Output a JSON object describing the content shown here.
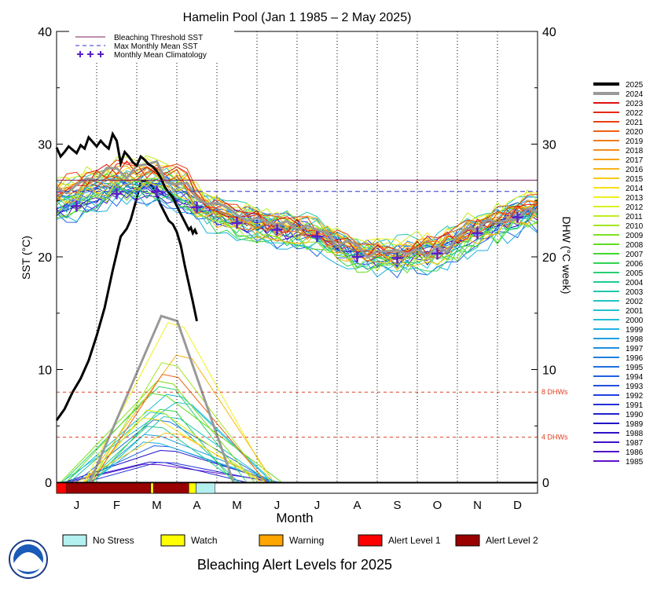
{
  "chart_data": {
    "type": "line",
    "title": "Hamelin Pool      (Jan 1 1985 – 2 May 2025)",
    "xlabel": "Month",
    "ylabel_left": "SST (°C)",
    "ylabel_right": "DHW (°C week)",
    "ylim": [
      0,
      40
    ],
    "y_ticks": [
      0,
      10,
      20,
      30,
      40
    ],
    "months": [
      "J",
      "F",
      "M",
      "A",
      "M",
      "J",
      "J",
      "A",
      "S",
      "O",
      "N",
      "D"
    ],
    "bleaching_threshold_sst": 26.8,
    "max_monthly_mean_sst": 25.8,
    "dhw_lines": [
      {
        "value": 4,
        "label": "4 DHWs"
      },
      {
        "value": 8,
        "label": "8 DHWs"
      }
    ],
    "legend_top": [
      {
        "label": "Bleaching Threshold SST",
        "style": "solid",
        "color": "#7a1f5a"
      },
      {
        "label": "Max Monthly Mean SST",
        "style": "dashed",
        "color": "#3030c8"
      },
      {
        "label": "Monthly Mean Climatology",
        "style": "plus",
        "color": "#5a1fc8"
      }
    ],
    "climatology": [
      24.5,
      25.6,
      25.8,
      24.4,
      23.0,
      22.4,
      21.8,
      20.0,
      19.9,
      20.3,
      22.1,
      23.5
    ],
    "years": [
      "2025",
      "2024",
      "2023",
      "2022",
      "2021",
      "2020",
      "2019",
      "2018",
      "2017",
      "2016",
      "2015",
      "2014",
      "2013",
      "2012",
      "2011",
      "2010",
      "2009",
      "2008",
      "2007",
      "2006",
      "2005",
      "2004",
      "2003",
      "2002",
      "2001",
      "2000",
      "1999",
      "1998",
      "1997",
      "1996",
      "1995",
      "1994",
      "1993",
      "1992",
      "1991",
      "1990",
      "1989",
      "1988",
      "1987",
      "1986",
      "1985"
    ],
    "year_colors": [
      "#000000",
      "#999999",
      "#e01010",
      "#e82810",
      "#ec4010",
      "#f06010",
      "#f27a12",
      "#f48c1a",
      "#f6a014",
      "#f8b414",
      "#fac814",
      "#fce014",
      "#f0f018",
      "#d8f020",
      "#c0ec20",
      "#a0e620",
      "#80e020",
      "#60dc20",
      "#40d830",
      "#30d450",
      "#28d070",
      "#20cc90",
      "#20c8a8",
      "#20c4c0",
      "#20c0d0",
      "#20bcd8",
      "#20b0e0",
      "#20a0e0",
      "#2090e0",
      "#2080e0",
      "#2070e0",
      "#2060e0",
      "#2050e0",
      "#2040e0",
      "#2030d8",
      "#2020d0",
      "#2010c8",
      "#3010c8",
      "#4010c8",
      "#5010c8",
      "#6010c8"
    ],
    "series_2025_sst": [
      [
        0.0,
        29.7
      ],
      [
        0.1,
        28.9
      ],
      [
        0.2,
        29.3
      ],
      [
        0.3,
        29.8
      ],
      [
        0.4,
        29.5
      ],
      [
        0.5,
        29.2
      ],
      [
        0.6,
        29.9
      ],
      [
        0.7,
        29.6
      ],
      [
        0.8,
        30.6
      ],
      [
        0.9,
        30.2
      ],
      [
        1.0,
        29.8
      ],
      [
        1.1,
        30.3
      ],
      [
        1.2,
        29.9
      ],
      [
        1.3,
        29.6
      ],
      [
        1.4,
        30.9
      ],
      [
        1.5,
        30.3
      ],
      [
        1.6,
        28.3
      ],
      [
        1.7,
        29.3
      ],
      [
        1.8,
        28.9
      ],
      [
        1.9,
        28.4
      ],
      [
        2.0,
        28.1
      ],
      [
        2.1,
        28.9
      ],
      [
        2.2,
        28.6
      ],
      [
        2.3,
        28.2
      ],
      [
        2.4,
        28.0
      ],
      [
        2.5,
        27.6
      ],
      [
        2.6,
        27.0
      ],
      [
        2.7,
        26.2
      ],
      [
        2.8,
        25.7
      ],
      [
        2.9,
        25.3
      ],
      [
        3.0,
        24.5
      ],
      [
        3.1,
        23.8
      ],
      [
        3.2,
        23.1
      ],
      [
        3.3,
        22.4
      ],
      [
        3.35,
        22.6
      ],
      [
        3.4,
        22.1
      ],
      [
        3.45,
        22.4
      ],
      [
        3.5,
        22.0
      ]
    ],
    "series_2025_dhw": [
      [
        0.0,
        5.5
      ],
      [
        0.2,
        6.5
      ],
      [
        0.4,
        8.0
      ],
      [
        0.6,
        9.2
      ],
      [
        0.8,
        10.8
      ],
      [
        1.0,
        13.0
      ],
      [
        1.2,
        15.5
      ],
      [
        1.4,
        18.8
      ],
      [
        1.6,
        21.8
      ],
      [
        1.75,
        22.5
      ],
      [
        1.85,
        23.3
      ],
      [
        2.0,
        25.2
      ],
      [
        2.1,
        26.6
      ],
      [
        2.2,
        26.8
      ],
      [
        2.4,
        26.2
      ],
      [
        2.6,
        24.6
      ],
      [
        2.8,
        23.2
      ],
      [
        2.9,
        22.9
      ],
      [
        3.0,
        22.2
      ],
      [
        3.1,
        21.0
      ],
      [
        3.2,
        19.2
      ],
      [
        3.3,
        17.6
      ],
      [
        3.4,
        16.0
      ],
      [
        3.5,
        14.3
      ]
    ],
    "alert_levels": [
      {
        "label": "No Stress",
        "color": "#b4f0f0"
      },
      {
        "label": "Watch",
        "color": "#ffff00"
      },
      {
        "label": "Warning",
        "color": "#ffa500"
      },
      {
        "label": "Alert Level 1",
        "color": "#ff0000"
      },
      {
        "label": "Alert Level 2",
        "color": "#990000"
      }
    ],
    "alert_timeline_2025": [
      {
        "from": 0.0,
        "to": 0.25,
        "level": "Alert Level 1"
      },
      {
        "from": 0.25,
        "to": 2.35,
        "level": "Alert Level 2"
      },
      {
        "from": 2.35,
        "to": 2.42,
        "level": "Watch"
      },
      {
        "from": 2.42,
        "to": 3.3,
        "level": "Alert Level 2"
      },
      {
        "from": 3.3,
        "to": 3.48,
        "level": "Watch"
      },
      {
        "from": 3.48,
        "to": 3.95,
        "level": "No Stress"
      }
    ],
    "alert_legend_title": "Bleaching Alert Levels for 2025"
  },
  "logo_text": "NOAA"
}
